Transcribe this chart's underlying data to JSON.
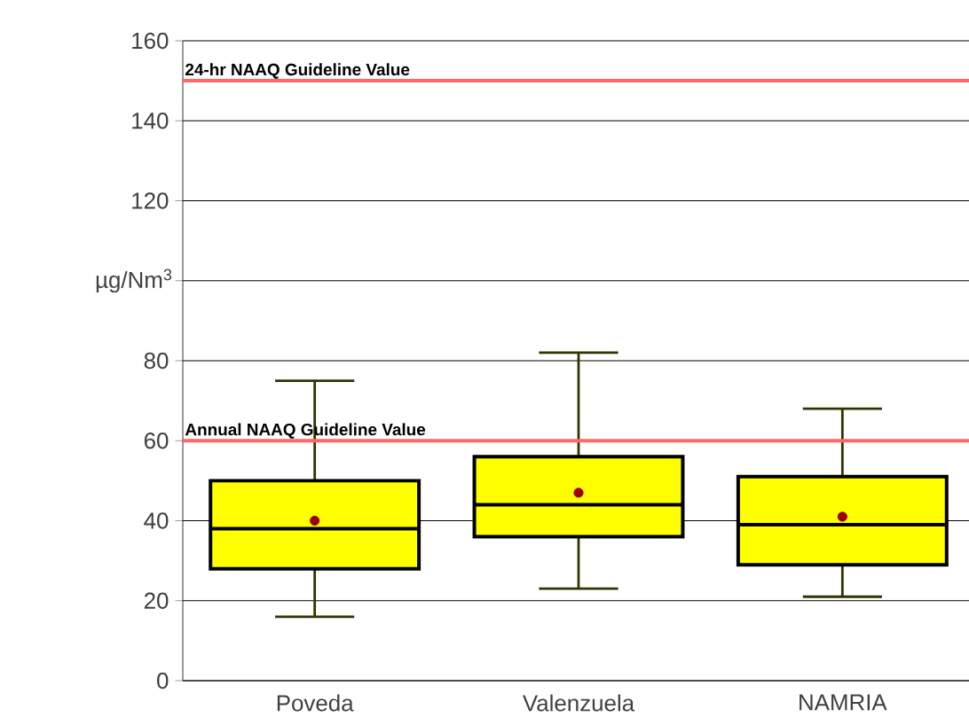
{
  "chart_data": {
    "type": "box",
    "ylabel": "µg/Nm$^{3}$",
    "categories": [
      "Poveda",
      "Valenzuela",
      "NAMRIA"
    ],
    "boxes": [
      {
        "low": 16,
        "q1": 28,
        "median": 38,
        "q3": 50,
        "high": 75,
        "mean": 40
      },
      {
        "low": 23,
        "q1": 36,
        "median": 44,
        "q3": 56,
        "high": 82,
        "mean": 47
      },
      {
        "low": 21,
        "q1": 29,
        "median": 39,
        "q3": 51,
        "high": 68,
        "mean": 41
      }
    ],
    "color": "#ffff00",
    "ylim": [
      0,
      160
    ],
    "yticks": [
      0,
      20,
      40,
      60,
      80,
      {
        "value": 100,
        "label": null
      },
      120,
      140,
      160
    ],
    "grid": "y",
    "ref_lines": [
      {
        "axis": "y",
        "value": 150,
        "label": "24-hr NAAQ Guideline Value",
        "color": "#ff6666"
      },
      {
        "axis": "y",
        "value": 60,
        "label": "Annual NAAQ Guideline Value",
        "color": "#ff6666"
      }
    ]
  }
}
